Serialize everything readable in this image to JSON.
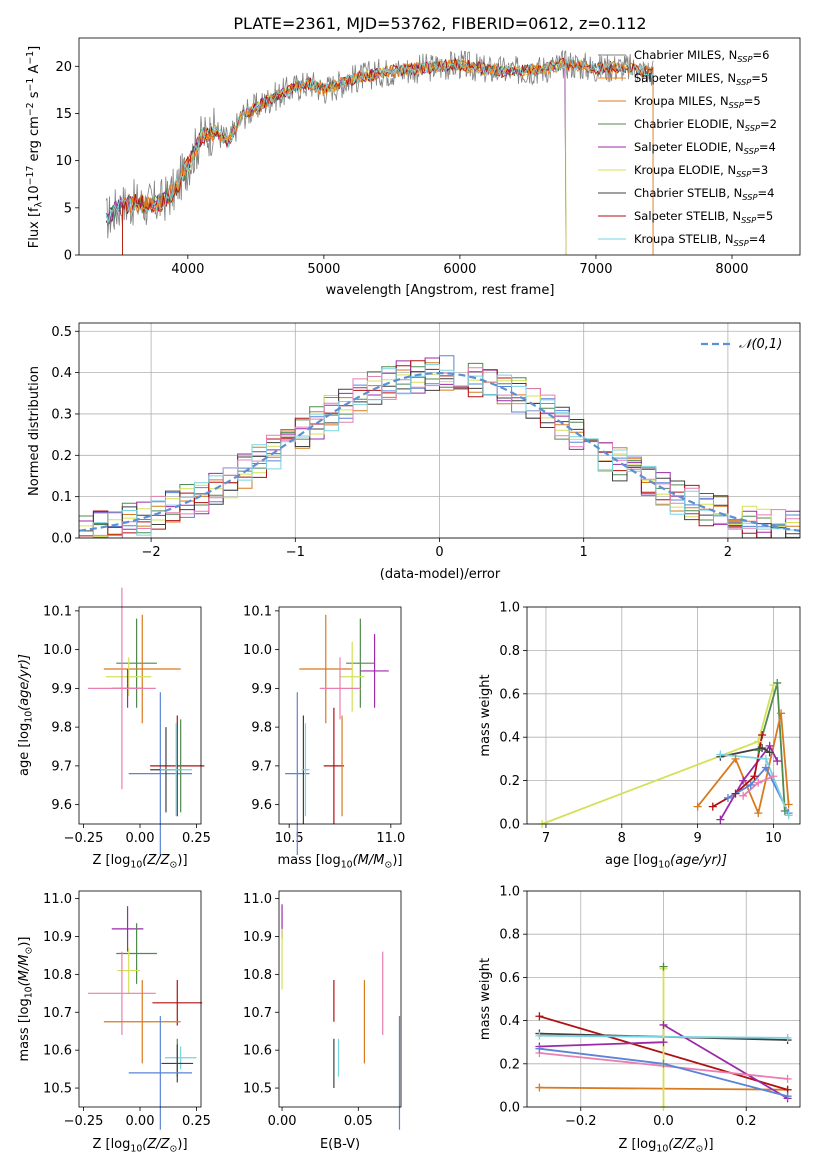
{
  "title": "PLATE=2361, MJD=53762, FIBERID=0612, z=0.112",
  "models": [
    {
      "name": "Chabrier MILES",
      "nssp": "6",
      "color": "#808080"
    },
    {
      "name": "Salpeter MILES",
      "nssp": "5",
      "color": "#ff7f0e"
    },
    {
      "name": "Kroupa MILES",
      "nssp": "5",
      "color": "#d87a1f"
    },
    {
      "name": "Chabrier ELODIE",
      "nssp": "2",
      "color": "#4f8a4f"
    },
    {
      "name": "Salpeter ELODIE",
      "nssp": "4",
      "color": "#9c2aa8"
    },
    {
      "name": "Kroupa ELODIE",
      "nssp": "3",
      "color": "#d4e157"
    },
    {
      "name": "Chabrier STELIB",
      "nssp": "4",
      "color": "#404040"
    },
    {
      "name": "Salpeter STELIB",
      "nssp": "5",
      "color": "#b01010"
    },
    {
      "name": "Kroupa STELIB",
      "nssp": "4",
      "color": "#7ad3e0"
    }
  ],
  "extra_colors": {
    "blue": "#5b84d6",
    "pink": "#e87fb3"
  },
  "chart_data": [
    {
      "id": "spectrum",
      "type": "line",
      "xlabel": "wavelength [Angstrom, rest frame]",
      "ylabel_prefix": "Flux [f",
      "ylabel_sub": "λ",
      "ylabel_mid": "10",
      "ylabel_exp": "−17",
      "ylabel_unit": " erg cm",
      "ylabel_exp2": "−2",
      "ylabel_s": " s",
      "ylabel_exp3": "−1",
      "ylabel_end": " A",
      "ylabel_exp4": "−1",
      "ylabel_close": "]",
      "xlim": [
        3200,
        8500
      ],
      "ylim": [
        0,
        23
      ],
      "xticks": [
        4000,
        5000,
        6000,
        7000,
        8000
      ],
      "yticks": [
        0,
        5,
        10,
        15,
        20
      ],
      "legend_position": "upper-right",
      "smooth_curve": {
        "x": [
          3400,
          3500,
          3600,
          3700,
          3800,
          3900,
          4000,
          4100,
          4200,
          4300,
          4400,
          4500,
          4600,
          4700,
          4800,
          4900,
          5000,
          5200,
          5400,
          5600,
          5800,
          6000,
          6200,
          6400,
          6600,
          6800,
          7000,
          7200,
          7400
        ],
        "y": [
          3.8,
          5.2,
          5.5,
          5.3,
          5.6,
          6.8,
          9.5,
          12.5,
          13.2,
          12.0,
          14.8,
          15.6,
          16.5,
          17.2,
          17.8,
          18.2,
          17.5,
          18.6,
          19.3,
          19.6,
          19.9,
          20.2,
          19.6,
          19.5,
          19.7,
          20.3,
          19.8,
          19.9,
          19.4
        ]
      }
    },
    {
      "id": "residuals",
      "type": "histogram",
      "xlabel": "(data-model)/error",
      "ylabel": "Normed distribution",
      "xlim": [
        -2.5,
        2.5
      ],
      "ylim": [
        0,
        0.52
      ],
      "xticks": [
        -2,
        -1,
        0,
        1,
        2
      ],
      "yticks": [
        0.0,
        0.1,
        0.2,
        0.3,
        0.4,
        0.5
      ],
      "bin_width": 0.1,
      "legend": "𝒩(0,1)",
      "reference_curve": "normal(0,1)",
      "grid": true
    },
    {
      "id": "age_vs_z",
      "type": "errorbar",
      "xlabel_prefix": "Z [log",
      "xlabel_sub": "10",
      "xlabel_body": "(Z/Z",
      "xlabel_sub2": "⊙",
      "xlabel_close": ")]",
      "ylabel_prefix": "age  [log",
      "ylabel_sub": "10",
      "ylabel_body": "(age/yr)]",
      "xlim": [
        -0.27,
        0.27
      ],
      "ylim": [
        9.55,
        10.11
      ],
      "xticks": [
        -0.25,
        0.0,
        0.25
      ],
      "yticks": [
        9.6,
        9.7,
        9.8,
        9.9,
        10.0,
        10.1
      ],
      "points": [
        {
          "color": "#4f8a4f",
          "x": -0.015,
          "xerr": 0.09,
          "y": 9.965,
          "yerr": 0.115
        },
        {
          "color": "#d87a1f",
          "x": 0.01,
          "xerr": 0.17,
          "y": 9.95,
          "yerr": 0.14
        },
        {
          "color": "#d4e157",
          "x": -0.05,
          "xerr": 0.1,
          "y": 9.93,
          "yerr": 0.05
        },
        {
          "color": "#9c2aa8",
          "x": -0.055,
          "xerr": 0.07,
          "y": 9.9,
          "yerr": 0.05
        },
        {
          "color": "#e87fb3",
          "x": -0.08,
          "xerr": 0.15,
          "y": 9.9,
          "yerr": 0.26
        },
        {
          "color": "#5b84d6",
          "x": 0.09,
          "xerr": 0.14,
          "y": 9.68,
          "yerr": 0.21
        },
        {
          "color": "#404040",
          "x": 0.115,
          "xerr": 0.07,
          "y": 9.69,
          "yerr": 0.11
        },
        {
          "color": "#b01010",
          "x": 0.165,
          "xerr": 0.12,
          "y": 9.7,
          "yerr": 0.13
        },
        {
          "color": "#4f8a4f",
          "x": 0.18,
          "xerr": 0.0,
          "y": 9.7,
          "yerr": 0.12
        },
        {
          "color": "#7ad3e0",
          "x": 0.16,
          "xerr": 0.07,
          "y": 9.69,
          "yerr": 0.12
        }
      ]
    },
    {
      "id": "age_vs_mass",
      "type": "errorbar",
      "xlabel_prefix": "mass [log",
      "xlabel_sub": "10",
      "xlabel_body": "(M/M",
      "xlabel_sub2": "⊙",
      "xlabel_close": ")]",
      "xlim": [
        10.45,
        11.05
      ],
      "ylim": [
        9.55,
        10.11
      ],
      "xticks": [
        10.5,
        11.0
      ],
      "yticks": [
        9.6,
        9.7,
        9.8,
        9.9,
        10.0,
        10.1
      ],
      "points": [
        {
          "color": "#4f8a4f",
          "x": 10.85,
          "xerr": 0.07,
          "y": 9.965,
          "yerr": 0.115
        },
        {
          "color": "#d87a1f",
          "x": 10.68,
          "xerr": 0.13,
          "y": 9.95,
          "yerr": 0.14
        },
        {
          "color": "#d4e157",
          "x": 10.81,
          "xerr": 0.06,
          "y": 9.93,
          "yerr": 0.09
        },
        {
          "color": "#9c2aa8",
          "x": 10.92,
          "xerr": 0.07,
          "y": 9.945,
          "yerr": 0.095
        },
        {
          "color": "#e87fb3",
          "x": 10.75,
          "xerr": 0.1,
          "y": 9.9,
          "yerr": 0.08
        },
        {
          "color": "#5b84d6",
          "x": 10.54,
          "xerr": 0.06,
          "y": 9.68,
          "yerr": 0.21
        },
        {
          "color": "#404040",
          "x": 10.57,
          "xerr": 0.0,
          "y": 9.69,
          "yerr": 0.14
        },
        {
          "color": "#b01010",
          "x": 10.72,
          "xerr": 0.05,
          "y": 9.7,
          "yerr": 0.15
        },
        {
          "color": "#d87a1f",
          "x": 10.76,
          "xerr": 0.0,
          "y": 9.7,
          "yerr": 0.13
        },
        {
          "color": "#7ad3e0",
          "x": 10.58,
          "xerr": 0.02,
          "y": 9.69,
          "yerr": 0.12
        }
      ]
    },
    {
      "id": "mass_weight_vs_age",
      "type": "line",
      "xlabel_prefix": "age  [log",
      "xlabel_sub": "10",
      "xlabel_body": "(age/yr)]",
      "ylabel": "mass weight",
      "xlim": [
        6.75,
        10.35
      ],
      "ylim": [
        0,
        1.0
      ],
      "xticks": [
        7,
        8,
        9,
        10
      ],
      "yticks": [
        0.0,
        0.2,
        0.4,
        0.6,
        0.8,
        1.0
      ],
      "grid": true,
      "series": [
        {
          "color": "#d4e157",
          "x": [
            6.95,
            9.8,
            10.0
          ],
          "y": [
            0.0,
            0.38,
            0.64
          ]
        },
        {
          "color": "#4f8a4f",
          "x": [
            9.8,
            10.05,
            10.15
          ],
          "y": [
            0.34,
            0.65,
            0.06
          ]
        },
        {
          "color": "#d87a1f",
          "x": [
            9.0,
            9.5,
            9.8,
            10.1,
            10.2
          ],
          "y": [
            0.08,
            0.3,
            0.05,
            0.51,
            0.09
          ]
        },
        {
          "color": "#9c2aa8",
          "x": [
            9.3,
            9.6,
            9.95,
            10.05
          ],
          "y": [
            0.02,
            0.2,
            0.36,
            0.29
          ]
        },
        {
          "color": "#404040",
          "x": [
            9.3,
            9.85,
            9.95
          ],
          "y": [
            0.31,
            0.35,
            0.33
          ]
        },
        {
          "color": "#b01010",
          "x": [
            9.2,
            9.5,
            9.75,
            9.85
          ],
          "y": [
            0.08,
            0.14,
            0.22,
            0.41
          ]
        },
        {
          "color": "#5b84d6",
          "x": [
            9.4,
            9.7,
            9.9,
            10.2
          ],
          "y": [
            0.12,
            0.18,
            0.26,
            0.05
          ]
        },
        {
          "color": "#e87fb3",
          "x": [
            9.6,
            9.8,
            10.0
          ],
          "y": [
            0.13,
            0.19,
            0.22
          ]
        },
        {
          "color": "#7ad3e0",
          "x": [
            9.3,
            9.9,
            10.2
          ],
          "y": [
            0.32,
            0.3,
            0.04
          ]
        }
      ]
    },
    {
      "id": "mass_vs_z",
      "type": "errorbar",
      "xlabel_prefix": "Z [log",
      "xlabel_sub": "10",
      "xlabel_body": "(Z/Z",
      "xlabel_sub2": "⊙",
      "xlabel_close": ")]",
      "ylabel_prefix": "mass [log",
      "ylabel_sub": "10",
      "ylabel_body": "(M/M",
      "ylabel_sub2": "⊙",
      "ylabel_close": ")]",
      "xlim": [
        -0.27,
        0.27
      ],
      "ylim": [
        10.45,
        11.02
      ],
      "xticks": [
        -0.25,
        0.0,
        0.25
      ],
      "yticks": [
        10.5,
        10.6,
        10.7,
        10.8,
        10.9,
        11.0
      ],
      "points": [
        {
          "color": "#9c2aa8",
          "x": -0.055,
          "xerr": 0.07,
          "y": 10.92,
          "yerr": 0.06
        },
        {
          "color": "#4f8a4f",
          "x": -0.015,
          "xerr": 0.09,
          "y": 10.855,
          "yerr": 0.08
        },
        {
          "color": "#d4e157",
          "x": -0.05,
          "xerr": 0.05,
          "y": 10.81,
          "yerr": 0.06
        },
        {
          "color": "#e87fb3",
          "x": -0.08,
          "xerr": 0.15,
          "y": 10.75,
          "yerr": 0.11
        },
        {
          "color": "#b01010",
          "x": 0.165,
          "xerr": 0.11,
          "y": 10.725,
          "yerr": 0.06
        },
        {
          "color": "#d87a1f",
          "x": 0.01,
          "xerr": 0.17,
          "y": 10.675,
          "yerr": 0.11
        },
        {
          "color": "#7ad3e0",
          "x": 0.18,
          "xerr": 0.07,
          "y": 10.58,
          "yerr": 0.03
        },
        {
          "color": "#4f8a4f",
          "x": 0.165,
          "xerr": 0.0,
          "y": 10.58,
          "yerr": 0.05
        },
        {
          "color": "#404040",
          "x": 0.165,
          "xerr": 0.07,
          "y": 10.565,
          "yerr": 0.05
        },
        {
          "color": "#5b84d6",
          "x": 0.09,
          "xerr": 0.14,
          "y": 10.54,
          "yerr": 0.15
        }
      ]
    },
    {
      "id": "mass_vs_ebv",
      "type": "errorbar",
      "xlabel": "E(B-V)",
      "xlim": [
        -0.002,
        0.078
      ],
      "ylim": [
        10.45,
        11.02
      ],
      "xticks": [
        0.0,
        0.05
      ],
      "xtick_labels": [
        "0.00",
        "0.05"
      ],
      "yticks": [
        10.5,
        10.6,
        10.7,
        10.8,
        10.9,
        11.0
      ],
      "points": [
        {
          "color": "#9c2aa8",
          "x": 0.0,
          "xerr": 0,
          "y": 10.94,
          "yerr": 0.045
        },
        {
          "color": "#d4e157",
          "x": 0.0,
          "xerr": 0,
          "y": 10.84,
          "yerr": 0.08
        },
        {
          "color": "#b01010",
          "x": 0.034,
          "xerr": 0,
          "y": 10.73,
          "yerr": 0.055
        },
        {
          "color": "#e87fb3",
          "x": 0.066,
          "xerr": 0,
          "y": 10.75,
          "yerr": 0.11
        },
        {
          "color": "#d87a1f",
          "x": 0.054,
          "xerr": 0,
          "y": 10.675,
          "yerr": 0.11
        },
        {
          "color": "#404040",
          "x": 0.034,
          "xerr": 0,
          "y": 10.565,
          "yerr": 0.065
        },
        {
          "color": "#7ad3e0",
          "x": 0.037,
          "xerr": 0,
          "y": 10.58,
          "yerr": 0.05
        },
        {
          "color": "#5b84d6",
          "x": 0.077,
          "xerr": 0,
          "y": 10.54,
          "yerr": 0.15
        }
      ]
    },
    {
      "id": "mass_weight_vs_z",
      "type": "line",
      "xlabel_prefix": "Z [log",
      "xlabel_sub": "10",
      "xlabel_body": "(Z/Z",
      "xlabel_sub2": "⊙",
      "xlabel_close": ")]",
      "ylabel": "mass weight",
      "xlim": [
        -0.33,
        0.33
      ],
      "ylim": [
        0,
        1.0
      ],
      "xticks": [
        -0.2,
        0.0,
        0.2
      ],
      "yticks": [
        0.0,
        0.2,
        0.4,
        0.6,
        0.8,
        1.0
      ],
      "grid": true,
      "series": [
        {
          "color": "#d87a1f",
          "x": [
            -0.3,
            0.3
          ],
          "y": [
            0.09,
            0.08
          ]
        },
        {
          "color": "#b01010",
          "x": [
            -0.3,
            0.3
          ],
          "y": [
            0.42,
            0.08
          ]
        },
        {
          "color": "#404040",
          "x": [
            -0.3,
            0.3
          ],
          "y": [
            0.34,
            0.31
          ]
        },
        {
          "color": "#9c2aa8",
          "x": [
            -0.3,
            0.0,
            0.0,
            0.3
          ],
          "y": [
            0.28,
            0.3,
            0.38,
            0.04
          ]
        },
        {
          "color": "#e87fb3",
          "x": [
            -0.3,
            0.3
          ],
          "y": [
            0.25,
            0.13
          ]
        },
        {
          "color": "#5b84d6",
          "x": [
            -0.3,
            0.0,
            0.3
          ],
          "y": [
            0.27,
            0.2,
            0.05
          ]
        },
        {
          "color": "#7ad3e0",
          "x": [
            -0.3,
            0.3
          ],
          "y": [
            0.33,
            0.32
          ]
        },
        {
          "color": "#d4e157",
          "x": [
            0.0,
            0.0
          ],
          "y": [
            0.0,
            0.64
          ]
        },
        {
          "color": "#4f8a4f",
          "x": [
            0.0
          ],
          "y": [
            0.65
          ]
        }
      ]
    }
  ]
}
